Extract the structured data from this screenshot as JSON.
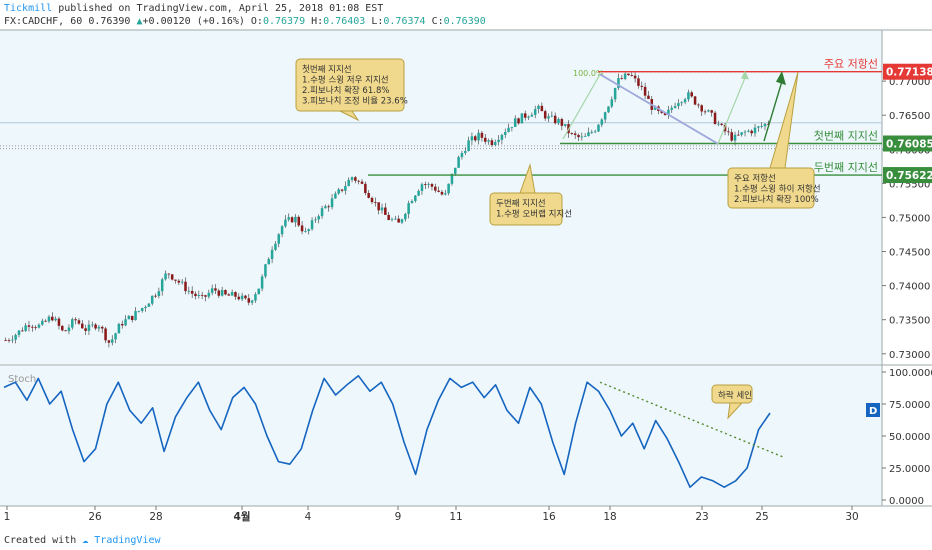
{
  "header": {
    "author": "Tickmill",
    "published_text": "published on TradingView.com, April 25, 2018 01:08 EST",
    "symbol": "FX:CADCHF, 60",
    "last": "0.76390",
    "change": "+0.00120 (+0.16%)",
    "o": "0.76379",
    "h": "0.76403",
    "l": "0.76374",
    "c": "0.76390"
  },
  "footer": {
    "created_with": "Created with",
    "brand": "TradingView"
  },
  "colors": {
    "resistance": "#e53935",
    "support": "#388e3c",
    "stoch": "#1565c0",
    "bull": "#26a69a",
    "bear": "#8b1a1a",
    "callout_bg": "#f0d98c",
    "callout_border": "#b8a040"
  },
  "chart_data": [
    {
      "type": "candlestick",
      "symbol": "FX:CADCHF",
      "interval": "60",
      "y_ticks": [
        "0.77000",
        "0.76500",
        "0.76000",
        "0.75500",
        "0.75000",
        "0.74500",
        "0.74000",
        "0.73500",
        "0.73000"
      ],
      "ylim": [
        0.7285,
        0.7775
      ],
      "x_ticks": [
        "1",
        "26",
        "28",
        "4월",
        "4",
        "9",
        "11",
        "16",
        "18",
        "23",
        "25",
        "30"
      ],
      "close_path": [
        0.732,
        0.733,
        0.7345,
        0.734,
        0.7355,
        0.733,
        0.735,
        0.7335,
        0.7345,
        0.7315,
        0.7345,
        0.7355,
        0.737,
        0.739,
        0.742,
        0.7405,
        0.739,
        0.738,
        0.7395,
        0.7385,
        0.7385,
        0.7375,
        0.74,
        0.7455,
        0.749,
        0.75,
        0.7475,
        0.7505,
        0.752,
        0.754,
        0.756,
        0.7545,
        0.752,
        0.75,
        0.749,
        0.7525,
        0.755,
        0.7545,
        0.753,
        0.758,
        0.761,
        0.762,
        0.761,
        0.7625,
        0.764,
        0.765,
        0.766,
        0.7645,
        0.764,
        0.762,
        0.7615,
        0.763,
        0.766,
        0.77,
        0.771,
        0.769,
        0.766,
        0.7645,
        0.767,
        0.768,
        0.7665,
        0.765,
        0.763,
        0.7615,
        0.7625,
        0.763,
        0.7639
      ],
      "levels": [
        {
          "label": "주요 저항선",
          "value": "0.77138",
          "kind": "resistance"
        },
        {
          "label": "첫번째 지지선",
          "value": "0.76085",
          "kind": "support"
        },
        {
          "label": "두번째 지지선",
          "value": "0.75622",
          "kind": "support"
        }
      ],
      "fib_label": "100.0%",
      "callouts": [
        {
          "lines": [
            "첫번째 지지선",
            "1.수평 스윙 저우 지지선",
            "2.피보나치 확장 61.8%",
            "3.피보나치 조정 비율 23.6%"
          ]
        },
        {
          "lines": [
            "두번째 지지선",
            "1.수평 오버랩 지지선"
          ]
        },
        {
          "lines": [
            "주요 저항선",
            "1.수평 스윙 하이 저항선",
            "2.피보나치 확장 100%"
          ]
        }
      ]
    },
    {
      "type": "line",
      "title": "Stoch",
      "y_ticks": [
        "100.0000",
        "75.0000",
        "50.0000",
        "25.0000",
        "0.0000"
      ],
      "ylim": [
        0,
        100
      ],
      "series": [
        {
          "name": "Stoch",
          "values": [
            88,
            92,
            78,
            95,
            75,
            85,
            55,
            30,
            40,
            75,
            92,
            70,
            60,
            72,
            38,
            65,
            80,
            92,
            70,
            55,
            80,
            88,
            75,
            50,
            30,
            28,
            40,
            70,
            95,
            82,
            90,
            97,
            85,
            92,
            75,
            45,
            20,
            55,
            78,
            95,
            88,
            92,
            80,
            90,
            70,
            60,
            88,
            75,
            45,
            20,
            60,
            92,
            85,
            70,
            50,
            60,
            40,
            62,
            48,
            30,
            10,
            18,
            15,
            10,
            15,
            25,
            55,
            68
          ]
        }
      ],
      "legend_badge": "D",
      "callout": "하락 세인"
    }
  ]
}
